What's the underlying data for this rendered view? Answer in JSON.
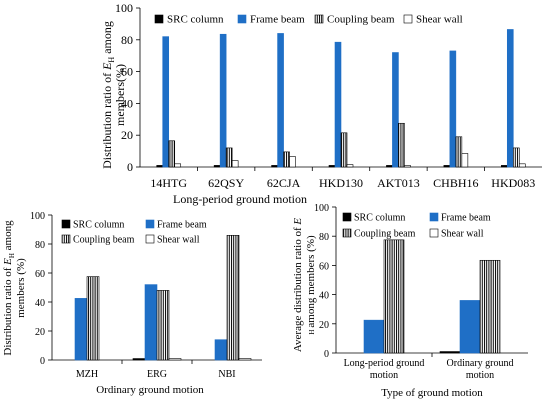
{
  "colors": {
    "SRC column": "#000000",
    "Frame beam": "#1f6fc6",
    "Coupling beam": "#ffffff",
    "Shear wall": "#ffffff"
  },
  "chart_data": [
    {
      "type": "bar",
      "title": "",
      "xlabel": "Long-period ground motion",
      "ylabel": "Distribution ratio of E_H among members(%)",
      "ylabel_parts": [
        "Distribution ratio of ",
        "E",
        "H",
        " among",
        "members(%)"
      ],
      "ylim": [
        0,
        100
      ],
      "yticks": [
        0,
        20,
        40,
        60,
        80,
        100
      ],
      "grid": false,
      "legend": "top",
      "categories": [
        "14HTG",
        "62QSY",
        "62CJA",
        "HKD130",
        "AKT013",
        "CHBH16",
        "HKD083"
      ],
      "series": [
        {
          "name": "SRC column",
          "values": [
            1,
            1,
            1,
            1,
            1,
            1,
            1
          ]
        },
        {
          "name": "Frame beam",
          "values": [
            82,
            83.5,
            84,
            78.5,
            72,
            73,
            86.5
          ]
        },
        {
          "name": "Coupling beam",
          "values": [
            16.5,
            12,
            9.5,
            21.5,
            27.5,
            19,
            12
          ]
        },
        {
          "name": "Shear wall",
          "values": [
            2,
            4,
            6.5,
            1.5,
            1,
            8.5,
            2
          ]
        }
      ]
    },
    {
      "type": "bar",
      "title": "",
      "xlabel": "Ordinary ground motion",
      "ylabel": "Distribution ratio of E_H among members (%)",
      "ylabel_parts": [
        "Distribution ratio of ",
        "E",
        "H",
        " among",
        "members (%)"
      ],
      "ylim": [
        0,
        100
      ],
      "yticks": [
        0,
        20,
        40,
        60,
        80,
        100
      ],
      "grid": false,
      "legend": "top",
      "categories": [
        "MZH",
        "ERG",
        "NBI"
      ],
      "series": [
        {
          "name": "SRC column",
          "values": [
            0,
            1,
            0
          ]
        },
        {
          "name": "Frame beam",
          "values": [
            42.5,
            52,
            14
          ]
        },
        {
          "name": "Coupling beam",
          "values": [
            57.5,
            48,
            86
          ]
        },
        {
          "name": "Shear wall",
          "values": [
            0,
            1,
            1
          ]
        }
      ]
    },
    {
      "type": "bar",
      "title": "",
      "xlabel": "Type of ground motion",
      "ylabel": "Average distribution ratio of E_H among members (%)",
      "ylabel_parts": [
        "Average distribution ratio of ",
        "E",
        "H",
        "among  members (%)"
      ],
      "ylim": [
        0,
        100
      ],
      "yticks": [
        0,
        20,
        40,
        60,
        80,
        100
      ],
      "grid": false,
      "legend": "top",
      "categories": [
        "Long-period ground motion",
        "Ordinary ground motion"
      ],
      "category_lines": [
        [
          "Long-period ground",
          "motion"
        ],
        [
          "Ordinary ground",
          "motion"
        ]
      ],
      "series": [
        {
          "name": "SRC column",
          "values": [
            0,
            1
          ]
        },
        {
          "name": "Frame beam",
          "values": [
            22.5,
            36
          ]
        },
        {
          "name": "Coupling beam",
          "values": [
            77.5,
            63.5
          ]
        },
        {
          "name": "Shear wall",
          "values": [
            0,
            0
          ]
        }
      ]
    }
  ]
}
